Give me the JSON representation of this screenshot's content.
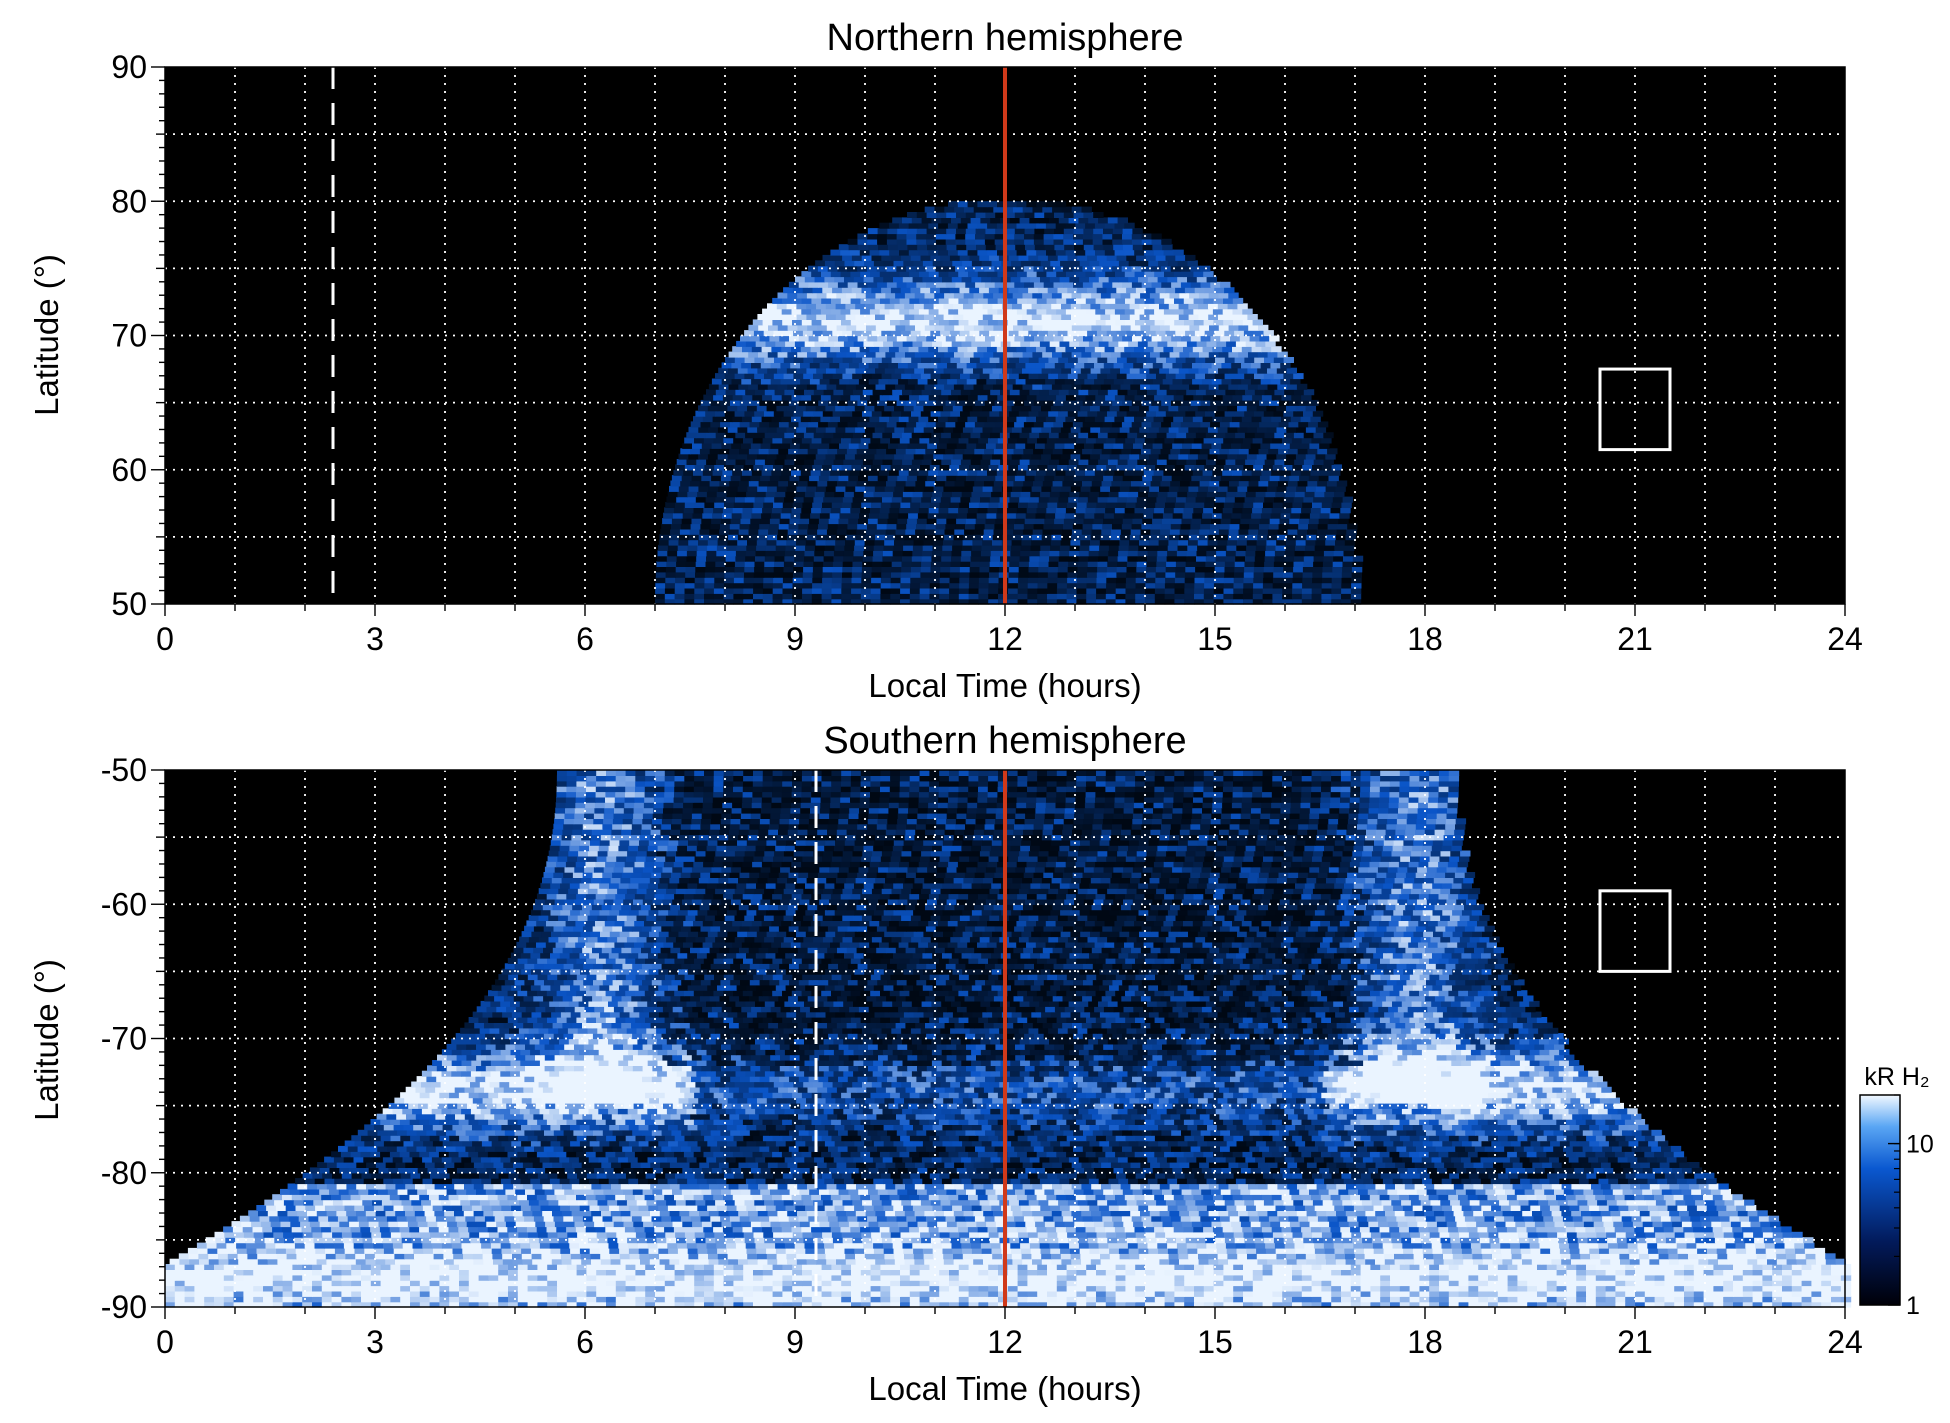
{
  "colors": {
    "background": "#000000",
    "noon_line": "#d0391a",
    "grid": "#ffffff",
    "emission_low": "#000814",
    "emission_mid": "#0a55c8",
    "emission_high": "#eaf4ff"
  },
  "chart_data": [
    {
      "type": "heatmap",
      "title": "Northern hemisphere",
      "xlabel": "Local Time (hours)",
      "ylabel": "Latitude (°)",
      "xlim": [
        0,
        24
      ],
      "ylim": [
        50,
        90
      ],
      "xticks": [
        "0",
        "3",
        "6",
        "9",
        "12",
        "15",
        "18",
        "21",
        "24"
      ],
      "yticks": [
        "50",
        "60",
        "70",
        "80",
        "90"
      ],
      "grid": true,
      "grid_style": "dotted white, every 1 hour and every 5 degrees",
      "noon_line_x": 12,
      "dashed_line_x": 2.4,
      "box": {
        "x": [
          20.5,
          21.5
        ],
        "y": [
          61.5,
          67.5
        ]
      },
      "emission_description": "dome of auroral emission centred on noon; main oval bright band near 67–75°; observed between ~7 and ~17 h LT"
    },
    {
      "type": "heatmap",
      "title": "Southern hemisphere",
      "xlabel": "Local Time (hours)",
      "ylabel": "Latitude (°)",
      "xlim": [
        0,
        24
      ],
      "ylim": [
        -90,
        -50
      ],
      "xticks": [
        "0",
        "3",
        "6",
        "9",
        "12",
        "15",
        "18",
        "21",
        "24"
      ],
      "yticks": [
        "-90",
        "-80",
        "-70",
        "-60",
        "-50"
      ],
      "grid": true,
      "grid_style": "dotted white, every 1 hour and every 5 degrees",
      "noon_line_x": 12,
      "dashed_line_x": 9.3,
      "box": {
        "x": [
          20.5,
          21.5
        ],
        "y": [
          -65,
          -59
        ]
      },
      "emission_description": "emission covering ~5.5–18.5 h at -50° widening to all local times near the pole; bright main oval around -72° to -78°"
    }
  ],
  "colorbar": {
    "label": "kR H₂",
    "scale": "log",
    "range": [
      1,
      20
    ],
    "ticks": [
      "1",
      "10"
    ]
  }
}
